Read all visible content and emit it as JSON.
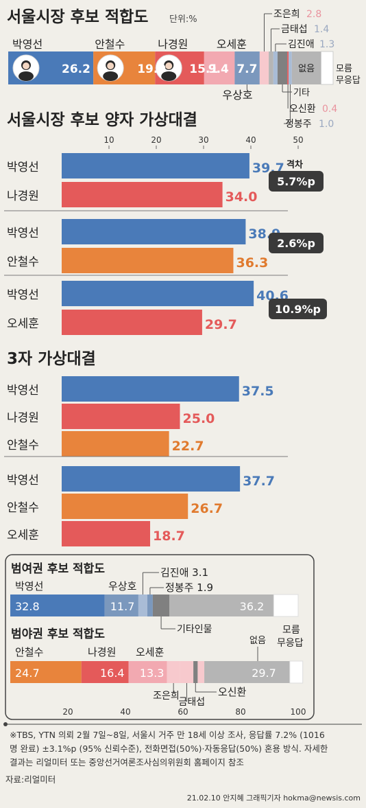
{
  "colors": {
    "blue": "#4a7ab8",
    "orange": "#e8843c",
    "red": "#e45a5a",
    "darkred": "#d9534f",
    "pink": "#f2a9b1",
    "lightpink": "#f7c9cd",
    "steel": "#7b98bd",
    "lightsteel": "#a9bcd6",
    "gray": "#b5b5b5",
    "darkgray": "#808080",
    "white": "#ffffff",
    "badge": "#3a3a3a"
  },
  "icons": [
    "candidate-photo-park-icon",
    "candidate-photo-ahn-icon",
    "candidate-photo-na-icon"
  ],
  "chart_data": [
    {
      "type": "bar",
      "title": "서울시장 후보 적합도",
      "unit": "단위:%",
      "segments": [
        {
          "name": "박영선",
          "value": 26.2,
          "color": "blue"
        },
        {
          "name": "안철수",
          "value": 19.0,
          "color": "orange"
        },
        {
          "name": "나경원",
          "value": 15.1,
          "color": "red"
        },
        {
          "name": "오세훈",
          "value": 9.4,
          "color": "pink"
        },
        {
          "name": "우상호",
          "value": 7.7,
          "color": "steel"
        },
        {
          "name": "조은희",
          "value": 2.8,
          "color": "lightpink"
        },
        {
          "name": "금태섭",
          "value": 1.4,
          "color": "gray"
        },
        {
          "name": "김진애",
          "value": 1.3,
          "color": "lightsteel"
        },
        {
          "name": "기타",
          "value": 3.0,
          "color": "darkgray"
        },
        {
          "name": "오신환",
          "value": 0.4,
          "color": "red"
        },
        {
          "name": "정봉주",
          "value": 1.0,
          "color": "lightsteel"
        },
        {
          "name": "없음",
          "value": 9.0,
          "color": "gray"
        },
        {
          "name": "모름\n무응답",
          "value": 3.7,
          "color": "white"
        }
      ],
      "labels": {
        "park": "박영선",
        "ahn": "안철수",
        "na": "나경원",
        "oh": "오세훈",
        "woo": "우상호",
        "cho": "조은희",
        "cho_v": "2.8",
        "geum": "금태섭",
        "geum_v": "1.4",
        "kim": "김진애",
        "kim_v": "1.3",
        "etc": "기타",
        "osin": "오신환",
        "osin_v": "0.4",
        "jung": "정봉주",
        "jung_v": "1.0",
        "none": "없음",
        "dk1": "모름",
        "dk2": "무응답"
      }
    },
    {
      "type": "bar",
      "title": "서울시장 후보 양자 가상대결",
      "xticks": [
        10,
        20,
        30,
        40,
        50
      ],
      "xlim": [
        0,
        50
      ],
      "gap_title": "격차",
      "groups": [
        {
          "gap": "5.7%p",
          "bars": [
            {
              "name": "박영선",
              "value": 39.7,
              "color": "blue"
            },
            {
              "name": "나경원",
              "value": 34.0,
              "color": "red"
            }
          ]
        },
        {
          "gap": "2.6%p",
          "bars": [
            {
              "name": "박영선",
              "value": 38.9,
              "color": "blue"
            },
            {
              "name": "안철수",
              "value": 36.3,
              "color": "orange"
            }
          ]
        },
        {
          "gap": "10.9%p",
          "bars": [
            {
              "name": "박영선",
              "value": 40.6,
              "color": "blue"
            },
            {
              "name": "오세훈",
              "value": 29.7,
              "color": "red"
            }
          ]
        }
      ]
    },
    {
      "type": "bar",
      "title": "3자 가상대결",
      "xlim": [
        0,
        50
      ],
      "groups": [
        {
          "bars": [
            {
              "name": "박영선",
              "value": 37.5,
              "color": "blue"
            },
            {
              "name": "나경원",
              "value": 25.0,
              "color": "red"
            },
            {
              "name": "안철수",
              "value": 22.7,
              "color": "orange"
            }
          ]
        },
        {
          "bars": [
            {
              "name": "박영선",
              "value": 37.7,
              "color": "blue"
            },
            {
              "name": "안철수",
              "value": 26.7,
              "color": "orange"
            },
            {
              "name": "오세훈",
              "value": 18.7,
              "color": "red"
            }
          ]
        }
      ]
    },
    {
      "type": "bar",
      "title": "범여권 후보 적합도",
      "xlim": [
        0,
        100
      ],
      "segments": [
        {
          "name": "박영선",
          "value": 32.8,
          "color": "blue"
        },
        {
          "name": "우상호",
          "value": 11.7,
          "color": "steel"
        },
        {
          "name": "김진애",
          "value": 3.1,
          "color": "lightsteel"
        },
        {
          "name": "정봉주",
          "value": 1.9,
          "color": "steel"
        },
        {
          "name": "기타인물",
          "value": 5.8,
          "color": "darkgray"
        },
        {
          "name": "없음",
          "value": 36.2,
          "color": "gray"
        },
        {
          "name": "모름/무응답",
          "value": 8.5,
          "color": "white"
        }
      ],
      "labels": {
        "park": "박영선",
        "park_v": "32.8",
        "woo": "우상호",
        "woo_v": "11.7",
        "kim": "김진애 3.1",
        "jung": "정봉주 1.9",
        "etc": "기타인물",
        "none_v": "36.2",
        "dk1": "모름",
        "dk2": "무응답"
      }
    },
    {
      "type": "bar",
      "title": "범야권 후보 적합도",
      "xlim": [
        0,
        100
      ],
      "xticks": [
        20,
        40,
        60,
        80,
        100
      ],
      "segments": [
        {
          "name": "안철수",
          "value": 24.7,
          "color": "orange"
        },
        {
          "name": "나경원",
          "value": 16.4,
          "color": "red"
        },
        {
          "name": "오세훈",
          "value": 13.3,
          "color": "pink"
        },
        {
          "name": "조은희",
          "value": 4.6,
          "color": "lightpink"
        },
        {
          "name": "금태섭",
          "value": 4.6,
          "color": "lightpink"
        },
        {
          "name": "오신환",
          "value": 1.5,
          "color": "darkgray"
        },
        {
          "name": "기타",
          "value": 2.3,
          "color": "lightpink"
        },
        {
          "name": "없음",
          "value": 29.7,
          "color": "gray"
        },
        {
          "name": "모름/무응답",
          "value": 4.5,
          "color": "white"
        }
      ],
      "labels": {
        "ahn": "안철수",
        "ahn_v": "24.7",
        "na": "나경원",
        "na_v": "16.4",
        "oh": "오세훈",
        "oh_v": "13.3",
        "none": "없음",
        "none_v": "29.7",
        "dk1": "모름",
        "dk2": "무응답",
        "cho": "조은희",
        "geum": "금태섭",
        "osin": "오신환"
      }
    }
  ],
  "footnote": {
    "line1": "※TBS, YTN 의뢰 2월 7일~8일, 서울시 거주 만 18세 이상 조사,  응답률 7.2% (1016",
    "line2": "명 완료) ±3.1%p (95% 신뢰수준), 전화면접(50%)·자동응답(50%) 혼용 방식. 자세한",
    "line3": "결과는 리얼미터 또는 중앙선거여론조사심의위원회 홈페이지 참조",
    "source": "자료:리얼미터",
    "credit": "21.02.10 안지혜 그래픽기자 hokma@newsis.com"
  }
}
